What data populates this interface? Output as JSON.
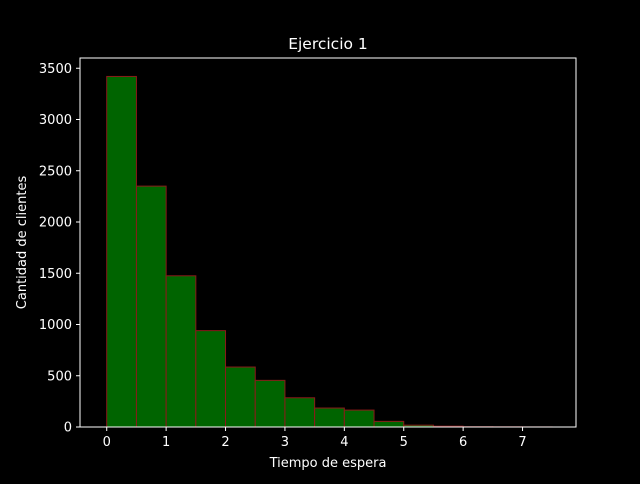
{
  "chart_data": {
    "type": "bar",
    "title": "Ejercicio 1",
    "xlabel": "Tiempo de espera",
    "ylabel": "Cantidad de clientes",
    "xlim": [
      -0.45,
      7.9
    ],
    "ylim": [
      0,
      3600
    ],
    "xticks": [
      "0",
      "1",
      "2",
      "3",
      "4",
      "5",
      "6",
      "7"
    ],
    "yticks": [
      "0",
      "500",
      "1000",
      "1500",
      "2000",
      "2500",
      "3000",
      "3500"
    ],
    "bin_edges": [
      0,
      0.5,
      1.0,
      1.5,
      2.0,
      2.5,
      3.0,
      3.5,
      4.0,
      4.5,
      5.0,
      5.5,
      6.0,
      6.5,
      7.0,
      7.5
    ],
    "values": [
      3420,
      2350,
      1475,
      940,
      585,
      455,
      285,
      185,
      165,
      55,
      18,
      8,
      3,
      2,
      1
    ],
    "grid": false,
    "colors": {
      "background": "#000000",
      "bar_fill": "#006400",
      "bar_edge": "#8b1a1a",
      "axes": "#ffffff",
      "text": "#ffffff"
    }
  }
}
